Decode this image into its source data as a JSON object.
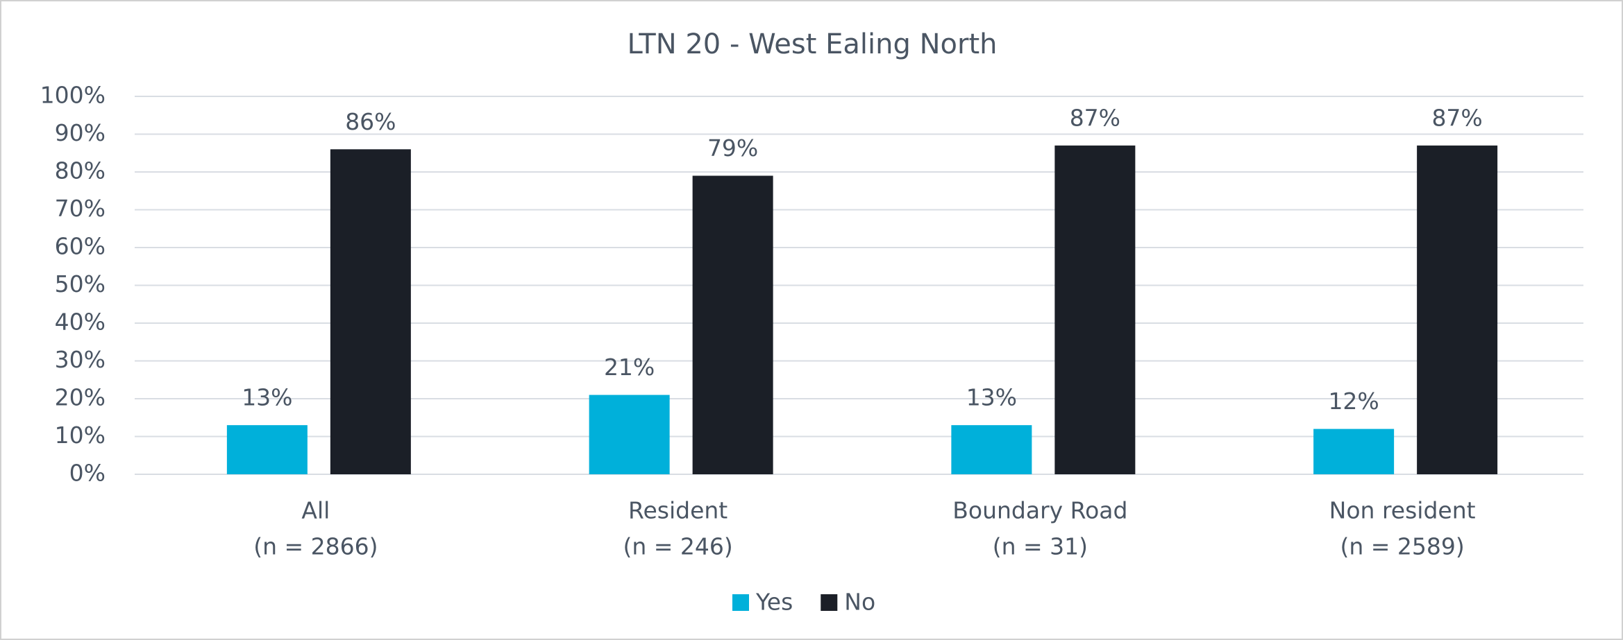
{
  "chart_data": {
    "type": "bar",
    "title": "LTN 20 - West Ealing North",
    "categories": [
      [
        "All",
        "(n = 2866)"
      ],
      [
        "Resident",
        "(n = 246)"
      ],
      [
        "Boundary Road",
        "(n = 31)"
      ],
      [
        "Non resident",
        "(n = 2589)"
      ]
    ],
    "series": [
      {
        "name": "Yes",
        "color": "#00b0da",
        "values": [
          13,
          21,
          13,
          12
        ],
        "value_labels": [
          "13%",
          "21%",
          "13%",
          "12%"
        ]
      },
      {
        "name": "No",
        "color": "#1b1f27",
        "values": [
          86,
          79,
          87,
          87
        ],
        "value_labels": [
          "86%",
          "79%",
          "87%",
          "87%"
        ]
      }
    ],
    "ylim": [
      0,
      100
    ],
    "yticks": [
      {
        "value": 0,
        "label": "0%"
      },
      {
        "value": 10,
        "label": "10%"
      },
      {
        "value": 20,
        "label": "20%"
      },
      {
        "value": 30,
        "label": "30%"
      },
      {
        "value": 40,
        "label": "40%"
      },
      {
        "value": 50,
        "label": "50%"
      },
      {
        "value": 60,
        "label": "60%"
      },
      {
        "value": 70,
        "label": "70%"
      },
      {
        "value": 80,
        "label": "80%"
      },
      {
        "value": 90,
        "label": "90%"
      },
      {
        "value": 100,
        "label": "100%"
      }
    ],
    "grid": true,
    "legend": "bottom"
  }
}
